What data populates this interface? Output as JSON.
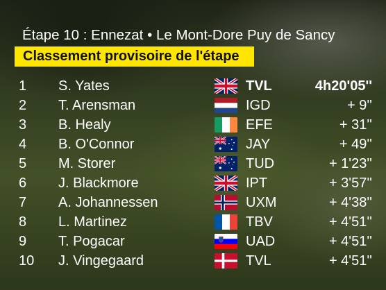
{
  "header": {
    "stage": "Étape 10 : Ennezat • Le Mont-Dore Puy de Sancy",
    "classification": "Classement provisoire de l'étape"
  },
  "standings": [
    {
      "rank": "1",
      "rider": "S. Yates",
      "flag": "gb",
      "team": "TVL",
      "time": "4h20'05''"
    },
    {
      "rank": "2",
      "rider": "T. Arensman",
      "flag": "nl",
      "team": "IGD",
      "time": "+ 9''"
    },
    {
      "rank": "3",
      "rider": "B. Healy",
      "flag": "ie",
      "team": "EFE",
      "time": "+ 31''"
    },
    {
      "rank": "4",
      "rider": "B. O'Connor",
      "flag": "au",
      "team": "JAY",
      "time": "+ 49''"
    },
    {
      "rank": "5",
      "rider": "M. Storer",
      "flag": "au",
      "team": "TUD",
      "time": "+ 1'23''"
    },
    {
      "rank": "6",
      "rider": "J. Blackmore",
      "flag": "gb",
      "team": "IPT",
      "time": "+ 3'57''"
    },
    {
      "rank": "7",
      "rider": "A. Johannessen",
      "flag": "no",
      "team": "UXM",
      "time": "+ 4'38''"
    },
    {
      "rank": "8",
      "rider": "L. Martinez",
      "flag": "fr",
      "team": "TBV",
      "time": "+ 4'51''"
    },
    {
      "rank": "9",
      "rider": "T. Pogacar",
      "flag": "si",
      "team": "UAD",
      "time": "+ 4'51''"
    },
    {
      "rank": "10",
      "rider": "J. Vingegaard",
      "flag": "dk",
      "team": "TVL",
      "time": "+ 4'51''"
    }
  ]
}
